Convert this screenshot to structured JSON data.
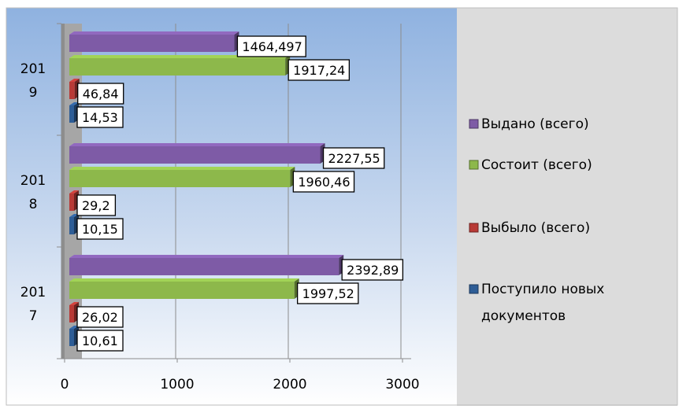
{
  "chart_data": {
    "type": "bar",
    "orientation": "horizontal",
    "categories": [
      "2017",
      "2018",
      "2019"
    ],
    "category_labels": [
      [
        "201",
        "7"
      ],
      [
        "201",
        "8"
      ],
      [
        "201",
        "9"
      ]
    ],
    "series": [
      {
        "name": "Поступило новых документов",
        "values": [
          10.61,
          10.15,
          14.53
        ],
        "labels": [
          "10,61",
          "10,15",
          "14,53"
        ],
        "color": "#2e5d96"
      },
      {
        "name": "Выбыло (всего)",
        "values": [
          26.02,
          29.2,
          46.84
        ],
        "labels": [
          "26,02",
          "29,2",
          "46,84"
        ],
        "color": "#b83a36"
      },
      {
        "name": "Состоит (всего)",
        "values": [
          1997.52,
          1960.46,
          1917.24
        ],
        "labels": [
          "1997,52",
          "1960,46",
          "1917,24"
        ],
        "color": "#8db84b"
      },
      {
        "name": "Выдано (всего)",
        "values": [
          2392.89,
          2227.55,
          1464.497
        ],
        "labels": [
          "2392,89",
          "2227,55",
          "1464,497"
        ],
        "color": "#7e5ba6"
      }
    ],
    "legend": {
      "placement": "right",
      "order": [
        "Выдано (всего)",
        "Состоит (всего)",
        "Выбыло (всего)",
        "Поступило новых документов"
      ],
      "lines": [
        [
          "Выдано (всего)"
        ],
        [
          "Состоит (всего)"
        ],
        [
          "Выбыло (всего)"
        ],
        [
          "Поступило новых",
          "документов"
        ]
      ]
    },
    "xlim": [
      0,
      3000
    ],
    "xticks": [
      0,
      1000,
      2000,
      3000
    ],
    "xtick_labels": [
      "0",
      "1000",
      "2000",
      "3000"
    ],
    "grid": true,
    "colors": {
      "plot_background_top": "#8fb2e0",
      "plot_background_bottom": "#ffffff",
      "legend_background": "#dcdcdc",
      "floor": "#a6a6a6"
    }
  }
}
